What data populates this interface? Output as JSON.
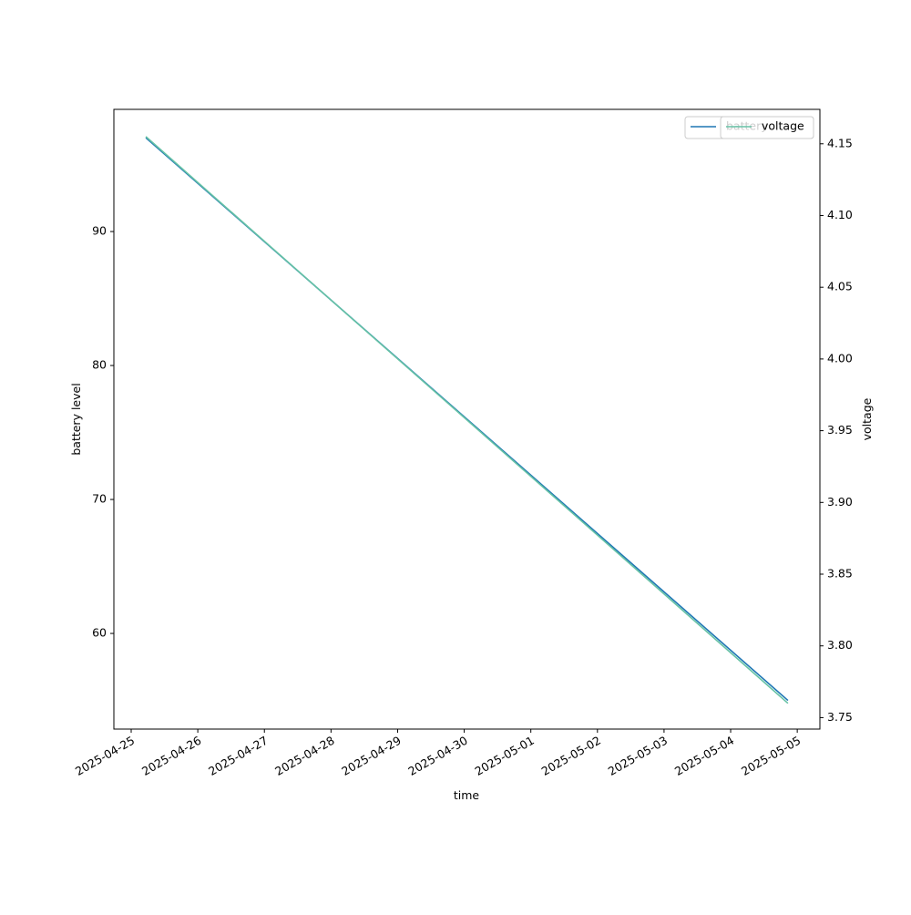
{
  "chart_data": {
    "type": "line",
    "x_label": "time",
    "y_label": "battery level",
    "y2_label": "voltage",
    "x": [
      20203.22,
      20212.86
    ],
    "series": [
      {
        "name": "battery",
        "color": "#1f77b4",
        "values": [
          97,
          55
        ]
      },
      {
        "name": "voltage",
        "color": "#66c2a5",
        "values": [
          4.155,
          3.76
        ],
        "axis": "y2"
      }
    ],
    "xlim": [
      20202.74,
      20213.34
    ],
    "xticks": [
      {
        "value": 20203,
        "label": "2025-04-25"
      },
      {
        "value": 20204,
        "label": "2025-04-26"
      },
      {
        "value": 20205,
        "label": "2025-04-27"
      },
      {
        "value": 20206,
        "label": "2025-04-28"
      },
      {
        "value": 20207,
        "label": "2025-04-29"
      },
      {
        "value": 20208,
        "label": "2025-04-30"
      },
      {
        "value": 20209,
        "label": "2025-05-01"
      },
      {
        "value": 20210,
        "label": "2025-05-02"
      },
      {
        "value": 20211,
        "label": "2025-05-03"
      },
      {
        "value": 20212,
        "label": "2025-05-04"
      },
      {
        "value": 20213,
        "label": "2025-05-05"
      }
    ],
    "ylim": [
      52.86,
      99.12
    ],
    "yticks": [
      60,
      70,
      80,
      90
    ],
    "y2lim": [
      3.742,
      4.174
    ],
    "y2ticks": [
      {
        "value": 3.75,
        "label": "3.75"
      },
      {
        "value": 3.8,
        "label": "3.80"
      },
      {
        "value": 3.85,
        "label": "3.85"
      },
      {
        "value": 3.9,
        "label": "3.90"
      },
      {
        "value": 3.95,
        "label": "3.95"
      },
      {
        "value": 4.0,
        "label": "4.00"
      },
      {
        "value": 4.05,
        "label": "4.05"
      },
      {
        "value": 4.1,
        "label": "4.10"
      },
      {
        "value": 4.15,
        "label": "4.15"
      }
    ],
    "legend": "upper right"
  }
}
